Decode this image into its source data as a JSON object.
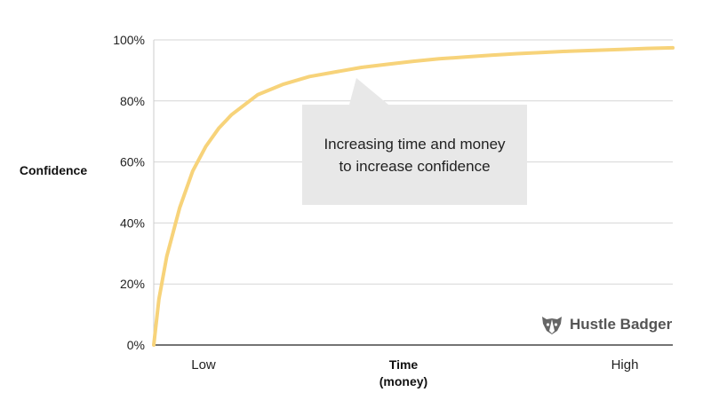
{
  "chart_data": {
    "type": "line",
    "xlabel": "Time (money)",
    "xlabel_lines": [
      "Time",
      "(money)"
    ],
    "ylabel": "Confidence",
    "x_categories": [
      "Low",
      "High"
    ],
    "y_ticks": [
      "0%",
      "20%",
      "40%",
      "60%",
      "80%",
      "100%"
    ],
    "ylim": [
      0,
      100
    ],
    "xlim": [
      0,
      100
    ],
    "grid": true,
    "series": [
      {
        "color": "#f7d37a",
        "x": [
          0,
          1,
          2.5,
          5,
          7.5,
          10,
          12.5,
          15,
          20,
          25,
          30,
          35,
          40,
          45,
          50,
          55,
          60,
          65,
          70,
          75,
          80,
          85,
          90,
          95,
          100
        ],
        "y": [
          0,
          15,
          29,
          45,
          57,
          65,
          71,
          75.5,
          82,
          85.5,
          88,
          89.5,
          91,
          92,
          93,
          93.8,
          94.4,
          95,
          95.5,
          95.9,
          96.3,
          96.6,
          96.9,
          97.2,
          97.4
        ]
      }
    ],
    "annotation": "Increasing time and money to increase confidence"
  },
  "brand": {
    "name": "Hustle Badger",
    "icon": "badger-icon"
  }
}
